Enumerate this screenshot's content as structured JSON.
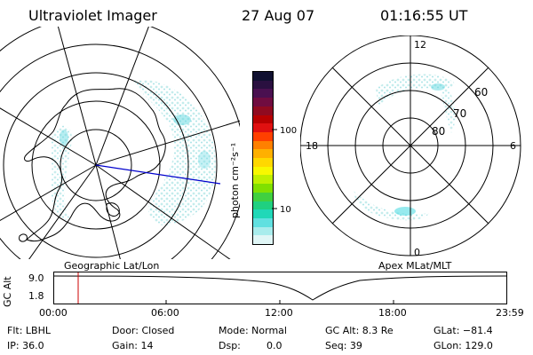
{
  "header": {
    "instrument": "Ultraviolet Imager",
    "date": "27 Aug 07",
    "time": "01:16:55 UT"
  },
  "colorbar": {
    "unit_label": "photon cm⁻²s⁻¹",
    "ticks": [
      "100",
      "10"
    ],
    "colors": [
      "#101030",
      "#2a1040",
      "#4a1050",
      "#700c40",
      "#900a20",
      "#b80000",
      "#e01010",
      "#ff4000",
      "#ff8000",
      "#ffb000",
      "#ffd800",
      "#f8f800",
      "#c0f000",
      "#80e000",
      "#40d040",
      "#20d080",
      "#20d8b8",
      "#60e0e0",
      "#a8ecec",
      "#e0f6f6"
    ]
  },
  "left_map": {
    "caption": "Geographic Lat/Lon",
    "projection_line_color": "#0000cc"
  },
  "right_map": {
    "caption": "Apex MLat/MLT",
    "mlt_labels": {
      "top": "12",
      "left": "18",
      "right": "6",
      "bottom": "0"
    },
    "mlat_labels": [
      "60",
      "70",
      "80"
    ]
  },
  "altitude_plot": {
    "ylabel": "GC Alt",
    "yticks": [
      "9.0",
      "1.8"
    ],
    "xticks": [
      "00:00",
      "06:00",
      "12:00",
      "18:00",
      "23:59"
    ],
    "marker_color": "#cc0000"
  },
  "info": {
    "filter": "Flt: LBHL",
    "ip": "IP: 36.0",
    "door": "Door: Closed",
    "gain": "Gain: 14",
    "mode": "Mode: Normal",
    "dsp_label": "Dsp:",
    "dsp_value": "0.0",
    "gc_alt": "GC Alt: 8.3 Re",
    "seq": "Seq: 39",
    "glat": "GLat: −81.4",
    "glon": "GLon: 129.0"
  }
}
